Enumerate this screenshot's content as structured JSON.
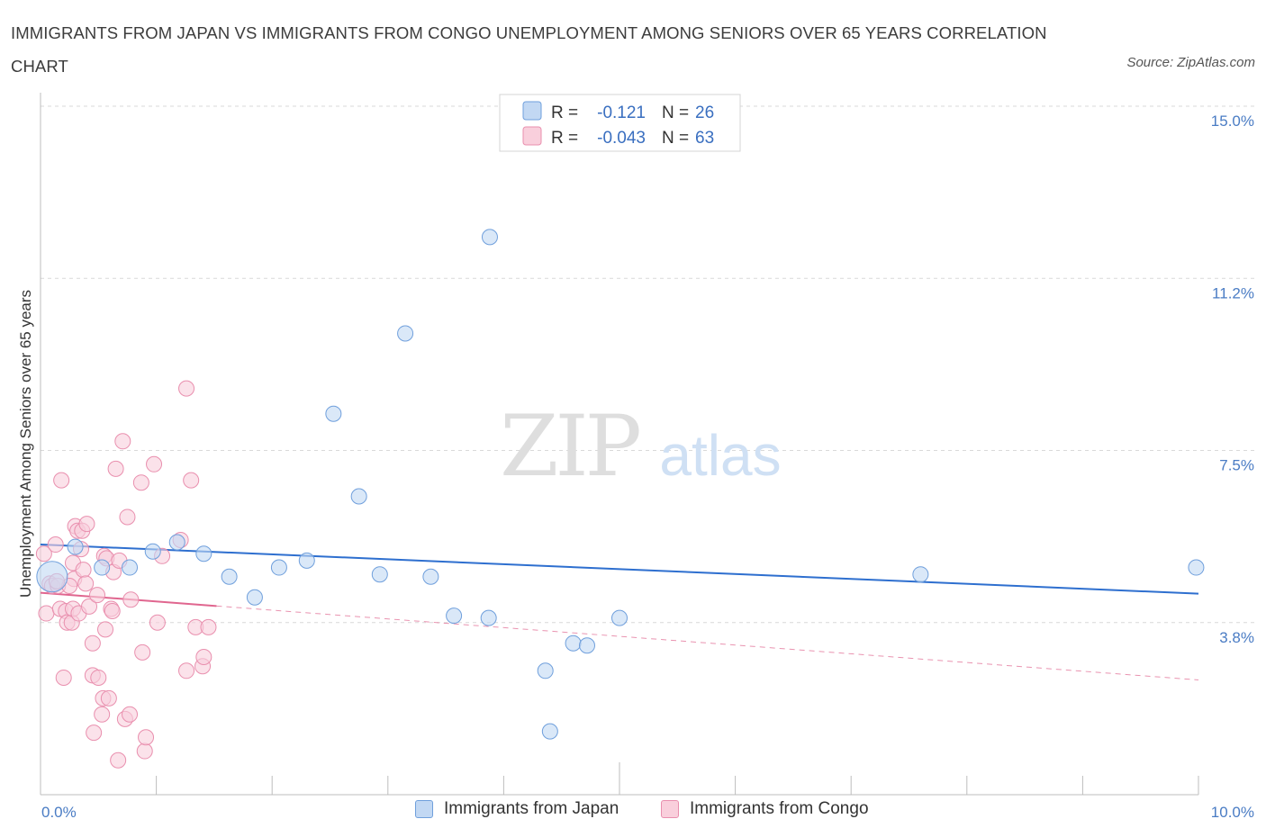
{
  "title": "IMMIGRANTS FROM JAPAN VS IMMIGRANTS FROM CONGO UNEMPLOYMENT AMONG SENIORS OVER 65 YEARS CORRELATION CHART",
  "source": "Source: ZipAtlas.com",
  "watermark": {
    "zip": "ZIP",
    "atlas": "atlas"
  },
  "colors": {
    "japan_fill": "#c2d8f3",
    "japan_stroke": "#6f9fdc",
    "japan_line": "#2e6fcf",
    "congo_fill": "#f9cfdc",
    "congo_stroke": "#e98fae",
    "congo_line": "#e0668f",
    "grid": "#d9d9d9",
    "axis_label": "#4a7cc4"
  },
  "legend": {
    "r_label": "R =",
    "n_label": "N =",
    "japan": {
      "r": "-0.121",
      "n": "26"
    },
    "congo": {
      "r": "-0.043",
      "n": "63"
    }
  },
  "chart_data": {
    "type": "scatter",
    "title": "IMMIGRANTS FROM JAPAN VS IMMIGRANTS FROM CONGO UNEMPLOYMENT AMONG SENIORS OVER 65 YEARS CORRELATION CHART",
    "xlabel": "",
    "ylabel": "Unemployment Among Seniors over 65 years",
    "xlim": [
      0,
      10
    ],
    "ylim": [
      0,
      15
    ],
    "x_tick_labels": {
      "left": "0.0%",
      "right": "10.0%"
    },
    "y_ticks": [
      {
        "value": 15.0,
        "label": "15.0%"
      },
      {
        "value": 11.25,
        "label": "11.2%"
      },
      {
        "value": 7.5,
        "label": "7.5%"
      },
      {
        "value": 3.75,
        "label": "3.8%"
      }
    ],
    "series": [
      {
        "name": "Immigrants from Japan",
        "r": -0.121,
        "n": 26,
        "trend": {
          "x1": 0.0,
          "y1": 5.45,
          "x2": 10.0,
          "y2": 4.38,
          "solid_to": 10.0
        },
        "points": [
          {
            "x": 0.1,
            "y": 4.75,
            "big": true
          },
          {
            "x": 0.3,
            "y": 5.4
          },
          {
            "x": 0.53,
            "y": 4.95
          },
          {
            "x": 0.77,
            "y": 4.95
          },
          {
            "x": 0.97,
            "y": 5.3
          },
          {
            "x": 1.18,
            "y": 5.5
          },
          {
            "x": 1.41,
            "y": 5.25
          },
          {
            "x": 1.63,
            "y": 4.75
          },
          {
            "x": 1.85,
            "y": 4.3
          },
          {
            "x": 2.06,
            "y": 4.95
          },
          {
            "x": 2.3,
            "y": 5.1
          },
          {
            "x": 2.53,
            "y": 8.3
          },
          {
            "x": 2.75,
            "y": 6.5
          },
          {
            "x": 2.93,
            "y": 4.8
          },
          {
            "x": 3.15,
            "y": 10.05
          },
          {
            "x": 3.37,
            "y": 4.75
          },
          {
            "x": 3.57,
            "y": 3.9
          },
          {
            "x": 3.88,
            "y": 12.15
          },
          {
            "x": 3.87,
            "y": 3.85
          },
          {
            "x": 4.36,
            "y": 2.7
          },
          {
            "x": 4.6,
            "y": 3.3
          },
          {
            "x": 4.72,
            "y": 3.25
          },
          {
            "x": 5.0,
            "y": 3.85
          },
          {
            "x": 4.4,
            "y": 1.38
          },
          {
            "x": 7.6,
            "y": 4.8
          },
          {
            "x": 9.98,
            "y": 4.95
          }
        ]
      },
      {
        "name": "Immigrants from Congo",
        "r": -0.043,
        "n": 63,
        "trend": {
          "x1": 0.0,
          "y1": 4.4,
          "x2": 10.0,
          "y2": 2.5,
          "solid_to": 1.52
        },
        "points": [
          {
            "x": 0.03,
            "y": 5.25
          },
          {
            "x": 0.05,
            "y": 3.95
          },
          {
            "x": 0.08,
            "y": 4.6
          },
          {
            "x": 0.1,
            "y": 4.55
          },
          {
            "x": 0.13,
            "y": 5.45
          },
          {
            "x": 0.15,
            "y": 4.55
          },
          {
            "x": 0.17,
            "y": 4.05
          },
          {
            "x": 0.18,
            "y": 6.85
          },
          {
            "x": 0.2,
            "y": 2.55
          },
          {
            "x": 0.22,
            "y": 4.0
          },
          {
            "x": 0.23,
            "y": 3.75
          },
          {
            "x": 0.27,
            "y": 3.75
          },
          {
            "x": 0.28,
            "y": 4.05
          },
          {
            "x": 0.28,
            "y": 5.05
          },
          {
            "x": 0.29,
            "y": 4.7
          },
          {
            "x": 0.3,
            "y": 5.85
          },
          {
            "x": 0.32,
            "y": 5.75
          },
          {
            "x": 0.33,
            "y": 3.95
          },
          {
            "x": 0.36,
            "y": 5.75
          },
          {
            "x": 0.37,
            "y": 4.9
          },
          {
            "x": 0.39,
            "y": 4.6
          },
          {
            "x": 0.4,
            "y": 5.9
          },
          {
            "x": 0.42,
            "y": 4.1
          },
          {
            "x": 0.45,
            "y": 3.3
          },
          {
            "x": 0.45,
            "y": 2.6
          },
          {
            "x": 0.46,
            "y": 1.35
          },
          {
            "x": 0.49,
            "y": 4.35
          },
          {
            "x": 0.5,
            "y": 2.55
          },
          {
            "x": 0.53,
            "y": 1.75
          },
          {
            "x": 0.54,
            "y": 2.1
          },
          {
            "x": 0.55,
            "y": 5.2
          },
          {
            "x": 0.56,
            "y": 3.6
          },
          {
            "x": 0.57,
            "y": 5.15
          },
          {
            "x": 0.59,
            "y": 2.1
          },
          {
            "x": 0.61,
            "y": 4.05
          },
          {
            "x": 0.63,
            "y": 4.85
          },
          {
            "x": 0.65,
            "y": 7.1
          },
          {
            "x": 0.67,
            "y": 0.75
          },
          {
            "x": 0.68,
            "y": 5.1
          },
          {
            "x": 0.71,
            "y": 7.7
          },
          {
            "x": 0.73,
            "y": 1.65
          },
          {
            "x": 0.75,
            "y": 6.05
          },
          {
            "x": 0.77,
            "y": 1.75
          },
          {
            "x": 0.78,
            "y": 4.25
          },
          {
            "x": 0.87,
            "y": 6.8
          },
          {
            "x": 0.88,
            "y": 3.1
          },
          {
            "x": 0.9,
            "y": 0.95
          },
          {
            "x": 0.91,
            "y": 1.25
          },
          {
            "x": 0.98,
            "y": 7.2
          },
          {
            "x": 1.01,
            "y": 3.75
          },
          {
            "x": 1.05,
            "y": 5.2
          },
          {
            "x": 1.21,
            "y": 5.55
          },
          {
            "x": 1.26,
            "y": 8.85
          },
          {
            "x": 1.26,
            "y": 2.7
          },
          {
            "x": 1.3,
            "y": 6.85
          },
          {
            "x": 1.34,
            "y": 3.65
          },
          {
            "x": 1.4,
            "y": 2.8
          },
          {
            "x": 1.41,
            "y": 3.0
          },
          {
            "x": 1.45,
            "y": 3.65
          },
          {
            "x": 0.62,
            "y": 4.0
          },
          {
            "x": 0.35,
            "y": 5.35
          },
          {
            "x": 0.25,
            "y": 4.55
          },
          {
            "x": 0.14,
            "y": 4.65
          }
        ]
      }
    ],
    "legend_position": "top-center",
    "grid": true
  }
}
